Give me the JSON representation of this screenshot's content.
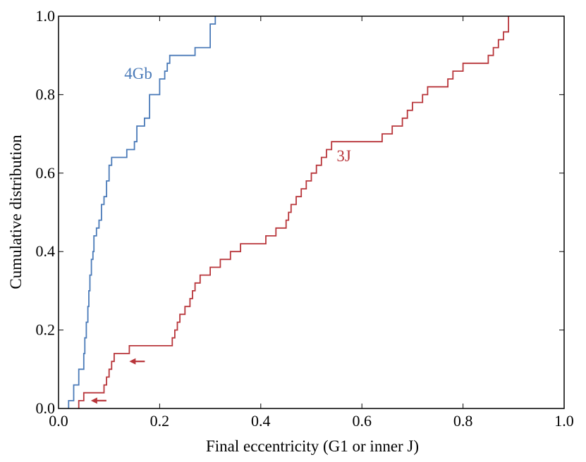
{
  "chart_data": {
    "type": "line",
    "step": true,
    "xlabel": "Final eccentricity (G1 or inner J)",
    "ylabel": "Cumulative distribution",
    "xlim": [
      0.0,
      1.0
    ],
    "ylim": [
      0.0,
      1.0
    ],
    "xticks": [
      "0.0",
      "0.2",
      "0.4",
      "0.6",
      "0.8",
      "1.0"
    ],
    "yticks": [
      "0.0",
      "0.2",
      "0.4",
      "0.6",
      "0.8",
      "1.0"
    ],
    "series": [
      {
        "name": "4Gb",
        "color": "#4a7ab8",
        "label_at": {
          "x": 0.13,
          "y": 0.84
        },
        "x": [
          0.02,
          0.03,
          0.04,
          0.05,
          0.052,
          0.055,
          0.058,
          0.06,
          0.062,
          0.065,
          0.068,
          0.07,
          0.075,
          0.08,
          0.085,
          0.09,
          0.095,
          0.1,
          0.105,
          0.11,
          0.12,
          0.135,
          0.14,
          0.15,
          0.155,
          0.16,
          0.17,
          0.18,
          0.19,
          0.2,
          0.21,
          0.215,
          0.22,
          0.23,
          0.25,
          0.27,
          0.3,
          0.31
        ],
        "y": [
          0.02,
          0.06,
          0.1,
          0.14,
          0.18,
          0.22,
          0.26,
          0.3,
          0.34,
          0.38,
          0.4,
          0.44,
          0.46,
          0.48,
          0.52,
          0.54,
          0.58,
          0.62,
          0.64,
          0.64,
          0.64,
          0.66,
          0.66,
          0.68,
          0.72,
          0.72,
          0.74,
          0.8,
          0.8,
          0.84,
          0.86,
          0.88,
          0.9,
          0.9,
          0.9,
          0.92,
          0.98,
          1.0
        ]
      },
      {
        "name": "3J",
        "color": "#b8353a",
        "label_at": {
          "x": 0.55,
          "y": 0.63
        },
        "x": [
          0.04,
          0.05,
          0.08,
          0.09,
          0.095,
          0.1,
          0.105,
          0.11,
          0.12,
          0.135,
          0.14,
          0.2,
          0.22,
          0.225,
          0.23,
          0.235,
          0.24,
          0.25,
          0.26,
          0.265,
          0.27,
          0.28,
          0.285,
          0.3,
          0.32,
          0.34,
          0.36,
          0.38,
          0.4,
          0.41,
          0.42,
          0.43,
          0.44,
          0.45,
          0.455,
          0.46,
          0.47,
          0.48,
          0.49,
          0.5,
          0.51,
          0.52,
          0.53,
          0.54,
          0.55,
          0.6,
          0.62,
          0.64,
          0.66,
          0.68,
          0.69,
          0.7,
          0.72,
          0.73,
          0.75,
          0.77,
          0.78,
          0.8,
          0.82,
          0.85,
          0.86,
          0.87,
          0.88,
          0.89
        ],
        "y": [
          0.02,
          0.04,
          0.04,
          0.06,
          0.08,
          0.1,
          0.12,
          0.14,
          0.14,
          0.14,
          0.16,
          0.16,
          0.16,
          0.18,
          0.2,
          0.22,
          0.24,
          0.26,
          0.28,
          0.3,
          0.32,
          0.34,
          0.34,
          0.36,
          0.38,
          0.4,
          0.42,
          0.42,
          0.42,
          0.44,
          0.44,
          0.46,
          0.46,
          0.48,
          0.5,
          0.52,
          0.54,
          0.56,
          0.58,
          0.6,
          0.62,
          0.64,
          0.66,
          0.68,
          0.68,
          0.68,
          0.68,
          0.7,
          0.72,
          0.74,
          0.76,
          0.78,
          0.8,
          0.82,
          0.82,
          0.84,
          0.86,
          0.88,
          0.88,
          0.9,
          0.92,
          0.94,
          0.96,
          1.0
        ]
      }
    ],
    "annotations": [
      {
        "type": "arrow",
        "direction": "left",
        "x": 0.14,
        "y": 0.12,
        "color": "#b8353a"
      },
      {
        "type": "arrow",
        "direction": "left",
        "x": 0.064,
        "y": 0.02,
        "color": "#b8353a"
      }
    ]
  }
}
